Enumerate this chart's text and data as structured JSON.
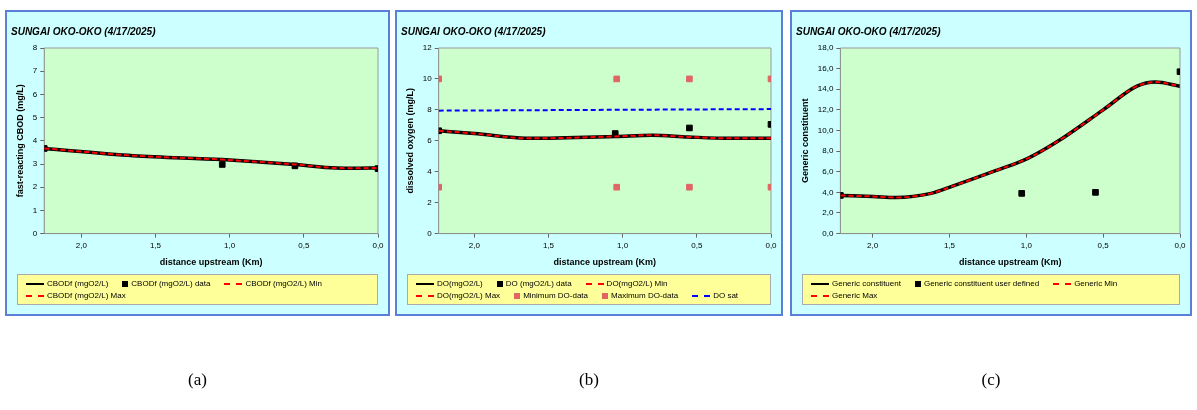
{
  "chart_data": [
    {
      "type": "line",
      "title": "SUNGAI OKO-OKO (4/17/2025)",
      "xlabel": "distance upstream (Km)",
      "ylabel": "fast-reacting CBOD (mg/L)",
      "xlim": [
        2.25,
        0
      ],
      "xticks": [
        {
          "value": 2,
          "label": "2,0"
        },
        {
          "value": 1.5,
          "label": "1,5"
        },
        {
          "value": 1,
          "label": "1,0"
        },
        {
          "value": 0.5,
          "label": "0,5"
        },
        {
          "value": 0,
          "label": "0,0"
        }
      ],
      "ylim": [
        0,
        8
      ],
      "yticks": [
        0,
        1,
        2,
        3,
        4,
        5,
        6,
        7,
        8
      ],
      "legend": "bottom",
      "annotations": [
        "(a)"
      ],
      "series": [
        {
          "name": "CBODf (mgO2/L)",
          "color": "#000000",
          "marker": "none",
          "line_style": "solid",
          "x": [
            2.25,
            1.65,
            1.05,
            0.8,
            0.56,
            0.28,
            0.15,
            0
          ],
          "values": [
            3.67,
            3.36,
            3.19,
            3.09,
            2.98,
            2.83,
            2.82,
            2.83
          ]
        },
        {
          "name": "CBODf (mgO2/L) data",
          "type": "scatter",
          "color": "#000000",
          "marker": "square",
          "x": [
            2.25,
            1.05,
            0.56,
            0
          ],
          "values": [
            3.67,
            2.98,
            2.92,
            2.8
          ]
        },
        {
          "name": "CBODf (mgO2/L) Min",
          "color": "#ff0000",
          "marker": "none",
          "line_style": "dashed",
          "x": [
            2.25,
            1.65,
            1.05,
            0.8,
            0.56,
            0.28,
            0.15,
            0
          ],
          "values": [
            3.67,
            3.36,
            3.19,
            3.09,
            2.98,
            2.83,
            2.82,
            2.83
          ]
        },
        {
          "name": "CBODf (mgO2/L) Max",
          "color": "#ff0000",
          "marker": "none",
          "line_style": "dashed"
        }
      ]
    },
    {
      "type": "line",
      "title": "SUNGAI OKO-OKO (4/17/2025)",
      "xlabel": "distance upstream (Km)",
      "ylabel": "dissolved oxygen (mg/L)",
      "xlim": [
        2.24,
        0
      ],
      "xticks": [
        {
          "value": 2,
          "label": "2,0"
        },
        {
          "value": 1.5,
          "label": "1,5"
        },
        {
          "value": 1,
          "label": "1,0"
        },
        {
          "value": 0.5,
          "label": "0,5"
        },
        {
          "value": 0,
          "label": "0,0"
        }
      ],
      "ylim": [
        0,
        12
      ],
      "yticks": [
        0,
        2,
        4,
        6,
        8,
        10,
        12
      ],
      "legend": "bottom",
      "annotations": [
        "(b)"
      ],
      "series": [
        {
          "name": "DO(mgO2/L)",
          "color": "#000000",
          "marker": "none",
          "line_style": "solid",
          "x": [
            2.24,
            2.0,
            1.63,
            1.05,
            0.8,
            0.56,
            0.28,
            0
          ],
          "values": [
            6.65,
            6.47,
            6.16,
            6.28,
            6.36,
            6.25,
            6.16,
            6.16
          ]
        },
        {
          "name": "DO (mgO2/L) data",
          "type": "scatter",
          "color": "#000000",
          "marker": "square",
          "x": [
            2.24,
            1.05,
            0.55,
            0
          ],
          "values": [
            6.65,
            6.47,
            6.83,
            7.06
          ]
        },
        {
          "name": "DO(mgO2/L) Min",
          "color": "#ff0000",
          "marker": "none",
          "line_style": "dashed",
          "x": [
            2.24,
            2.0,
            1.63,
            1.05,
            0.8,
            0.56,
            0.28,
            0
          ],
          "values": [
            6.65,
            6.47,
            6.16,
            6.28,
            6.36,
            6.25,
            6.16,
            6.16
          ]
        },
        {
          "name": "DO(mgO2/L) Max",
          "color": "#ff0000",
          "marker": "none",
          "line_style": "dashed"
        },
        {
          "name": "Minimum DO-data",
          "type": "scatter",
          "color": "#e06666",
          "marker": "square",
          "x": [
            2.24,
            1.04,
            0.55,
            0
          ],
          "values": [
            3,
            3,
            3,
            3
          ]
        },
        {
          "name": "Maximum DO-data",
          "type": "scatter",
          "color": "#e06666",
          "marker": "square",
          "x": [
            2.24,
            1.04,
            0.55,
            0
          ],
          "values": [
            10,
            10,
            10,
            10
          ]
        },
        {
          "name": "DO sat",
          "color": "#0000ff",
          "marker": "none",
          "line_style": "dashed",
          "x": [
            2.24,
            0
          ],
          "values": [
            7.95,
            8.05
          ]
        }
      ]
    },
    {
      "type": "line",
      "title": "SUNGAI OKO-OKO (4/17/2025)",
      "xlabel": "distance upstream (Km)",
      "ylabel": "Generic constituent",
      "xlim": [
        2.21,
        0
      ],
      "xticks": [
        {
          "value": 2,
          "label": "2,0"
        },
        {
          "value": 1.5,
          "label": "1,5"
        },
        {
          "value": 1,
          "label": "1,0"
        },
        {
          "value": 0.5,
          "label": "0,5"
        },
        {
          "value": 0,
          "label": "0,0"
        }
      ],
      "ylim": [
        0,
        18
      ],
      "yticks": [
        {
          "value": 0,
          "label": "0,0"
        },
        {
          "value": 2,
          "label": "2,0"
        },
        {
          "value": 4,
          "label": "4,0"
        },
        {
          "value": 6,
          "label": "6,0"
        },
        {
          "value": 8,
          "label": "8,0"
        },
        {
          "value": 10,
          "label": "10,0"
        },
        {
          "value": 12,
          "label": "12,0"
        },
        {
          "value": 14,
          "label": "14,0"
        },
        {
          "value": 16,
          "label": "16,0"
        },
        {
          "value": 18,
          "label": "18,0"
        }
      ],
      "legend": "bottom",
      "annotations": [
        "(c)"
      ],
      "series": [
        {
          "name": "Generic constituent",
          "color": "#000000",
          "marker": "none",
          "line_style": "solid",
          "x": [
            2.21,
            2.0,
            1.85,
            1.62,
            1.48,
            1.2,
            0.99,
            0.79,
            0.5,
            0.28,
            0.16,
            0
          ],
          "values": [
            3.7,
            3.6,
            3.5,
            3.9,
            4.6,
            6.1,
            7.3,
            9.0,
            12.0,
            14.3,
            14.7,
            14.3
          ]
        },
        {
          "name": "Generic constituent user defined",
          "type": "scatter",
          "color": "#000000",
          "marker": "square",
          "x": [
            2.21,
            1.03,
            0.55,
            0
          ],
          "values": [
            3.7,
            3.9,
            4.0,
            15.7
          ]
        },
        {
          "name": "Generic Min",
          "color": "#ff0000",
          "marker": "none",
          "line_style": "dashed",
          "x": [
            2.21,
            2.0,
            1.85,
            1.62,
            1.48,
            1.2,
            0.99,
            0.79,
            0.5,
            0.28,
            0.16,
            0
          ],
          "values": [
            3.7,
            3.6,
            3.5,
            3.9,
            4.6,
            6.1,
            7.3,
            9.0,
            12.0,
            14.3,
            14.7,
            14.3
          ]
        },
        {
          "name": "Generic Max",
          "color": "#ff0000",
          "marker": "none",
          "line_style": "dashed"
        }
      ]
    }
  ]
}
